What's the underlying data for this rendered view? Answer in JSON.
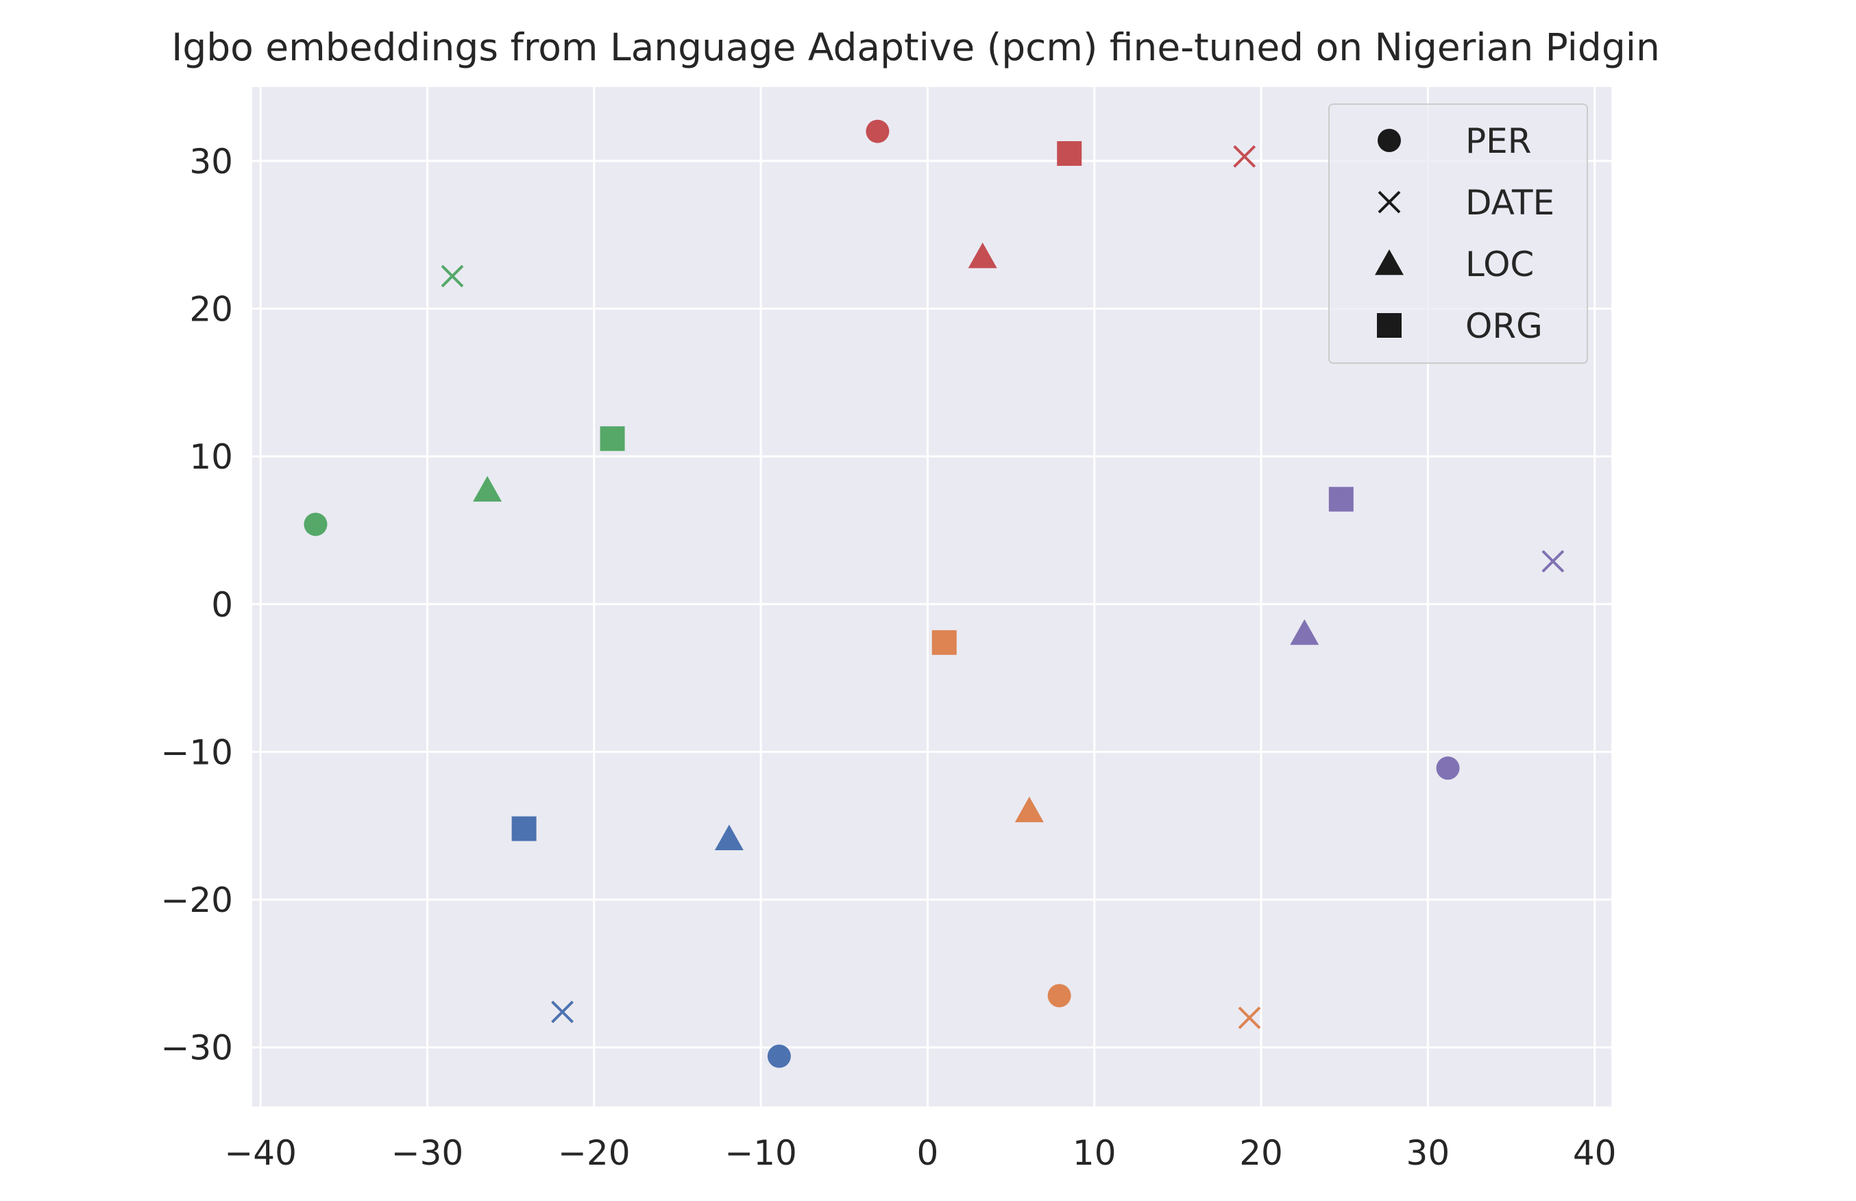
{
  "chart_data": {
    "type": "scatter",
    "title": "Igbo embeddings from Language Adaptive (pcm) fine-tuned on Nigerian Pidgin",
    "xlabel": "",
    "ylabel": "",
    "xlim": [
      -40.5,
      41
    ],
    "ylim": [
      -34,
      35
    ],
    "xticks": [
      -40,
      -30,
      -20,
      -10,
      0,
      10,
      20,
      30,
      40
    ],
    "yticks": [
      -30,
      -20,
      -10,
      0,
      10,
      20,
      30
    ],
    "grid": true,
    "legend": {
      "position": "top-right",
      "entries": [
        {
          "label": "PER",
          "marker": "circle"
        },
        {
          "label": "DATE",
          "marker": "x"
        },
        {
          "label": "LOC",
          "marker": "triangle"
        },
        {
          "label": "ORG",
          "marker": "square"
        }
      ]
    },
    "colors": {
      "blue": "#4c72b0",
      "orange": "#dd8452",
      "green": "#55a868",
      "red": "#c44e52",
      "purple": "#8172b3"
    },
    "points": [
      {
        "x": -3,
        "y": 32,
        "marker": "circle",
        "color": "red"
      },
      {
        "x": 8.5,
        "y": 30.5,
        "marker": "square",
        "color": "red"
      },
      {
        "x": 19,
        "y": 30.3,
        "marker": "x",
        "color": "red"
      },
      {
        "x": 3.3,
        "y": 23.5,
        "marker": "triangle",
        "color": "red"
      },
      {
        "x": -28.5,
        "y": 22.2,
        "marker": "x",
        "color": "green"
      },
      {
        "x": -18.9,
        "y": 11.2,
        "marker": "square",
        "color": "green"
      },
      {
        "x": -26.4,
        "y": 7.7,
        "marker": "triangle",
        "color": "green"
      },
      {
        "x": -36.7,
        "y": 5.4,
        "marker": "circle",
        "color": "green"
      },
      {
        "x": 24.8,
        "y": 7.1,
        "marker": "square",
        "color": "purple"
      },
      {
        "x": 37.5,
        "y": 2.9,
        "marker": "x",
        "color": "purple"
      },
      {
        "x": 22.6,
        "y": -2,
        "marker": "triangle",
        "color": "purple"
      },
      {
        "x": 31.2,
        "y": -11.1,
        "marker": "circle",
        "color": "purple"
      },
      {
        "x": 1,
        "y": -2.6,
        "marker": "square",
        "color": "orange"
      },
      {
        "x": 6.1,
        "y": -14,
        "marker": "triangle",
        "color": "orange"
      },
      {
        "x": 7.9,
        "y": -26.5,
        "marker": "circle",
        "color": "orange"
      },
      {
        "x": 19.3,
        "y": -28,
        "marker": "x",
        "color": "orange"
      },
      {
        "x": -24.2,
        "y": -15.2,
        "marker": "square",
        "color": "blue"
      },
      {
        "x": -11.9,
        "y": -15.9,
        "marker": "triangle",
        "color": "blue"
      },
      {
        "x": -21.9,
        "y": -27.6,
        "marker": "x",
        "color": "blue"
      },
      {
        "x": -8.9,
        "y": -30.6,
        "marker": "circle",
        "color": "blue"
      }
    ]
  }
}
